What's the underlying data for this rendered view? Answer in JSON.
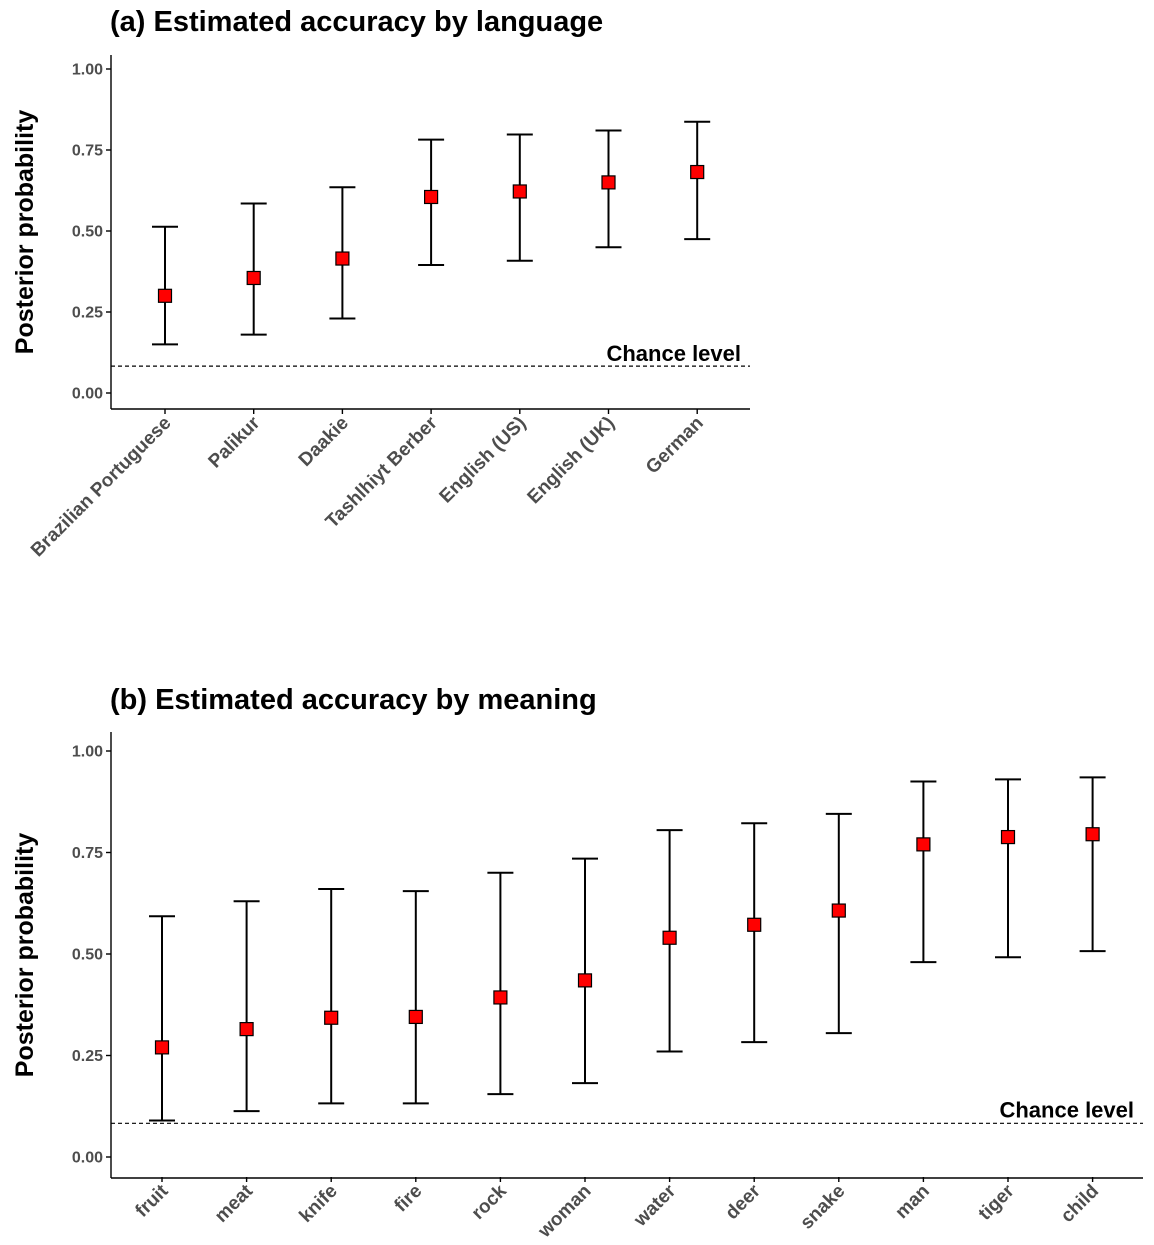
{
  "chart_data": [
    {
      "type": "scatter",
      "title": "(a) Estimated accuracy by language",
      "ylabel": "Posterior probability",
      "xlabel": "",
      "ylim": [
        0,
        1
      ],
      "yticks": [
        "0.00",
        "0.25",
        "0.50",
        "0.75",
        "1.00"
      ],
      "chance_label": "Chance level",
      "chance_value": 0.083,
      "categories": [
        "Brazilian Portuguese",
        "Palikur",
        "Daakie",
        "Tashlhiyt Berber",
        "English (US)",
        "English (UK)",
        "German"
      ],
      "values": [
        0.3,
        0.355,
        0.415,
        0.605,
        0.622,
        0.65,
        0.682
      ],
      "lower": [
        0.15,
        0.18,
        0.23,
        0.395,
        0.408,
        0.45,
        0.475
      ],
      "upper": [
        0.513,
        0.585,
        0.635,
        0.782,
        0.798,
        0.81,
        0.837
      ],
      "grid": false,
      "marker_color": "#ff0000"
    },
    {
      "type": "scatter",
      "title": "(b) Estimated accuracy by meaning",
      "ylabel": "Posterior probability",
      "xlabel": "",
      "ylim": [
        0,
        1
      ],
      "yticks": [
        "0.00",
        "0.25",
        "0.50",
        "0.75",
        "1.00"
      ],
      "chance_label": "Chance level",
      "chance_value": 0.083,
      "categories": [
        "fruit",
        "meat",
        "knife",
        "fire",
        "rock",
        "woman",
        "water",
        "deer",
        "snake",
        "man",
        "tiger",
        "child"
      ],
      "values": [
        0.27,
        0.315,
        0.343,
        0.345,
        0.393,
        0.435,
        0.54,
        0.572,
        0.607,
        0.77,
        0.788,
        0.795
      ],
      "lower": [
        0.09,
        0.113,
        0.132,
        0.132,
        0.155,
        0.182,
        0.26,
        0.283,
        0.305,
        0.48,
        0.492,
        0.507
      ],
      "upper": [
        0.593,
        0.63,
        0.66,
        0.655,
        0.7,
        0.735,
        0.805,
        0.822,
        0.845,
        0.925,
        0.93,
        0.935
      ],
      "grid": false,
      "marker_color": "#ff0000"
    }
  ]
}
